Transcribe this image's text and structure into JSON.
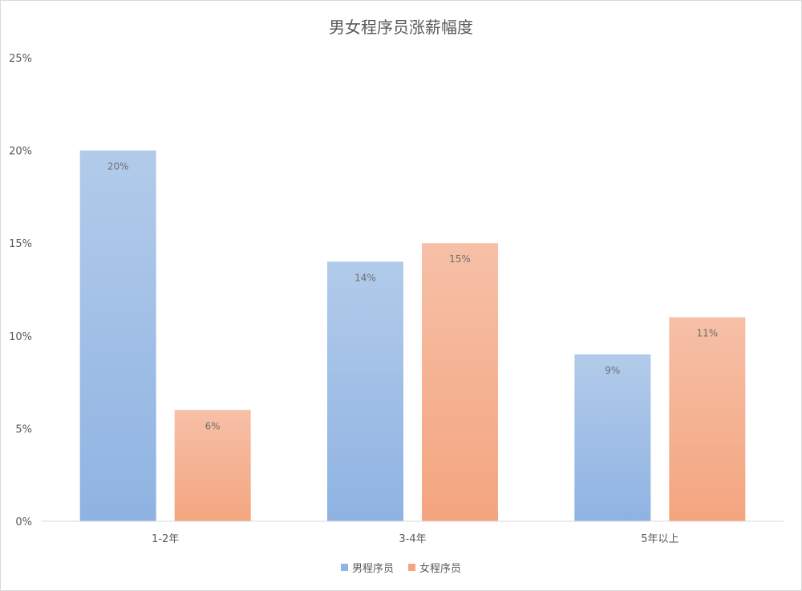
{
  "chart_data": {
    "type": "bar",
    "title": "男女程序员涨薪幅度",
    "categories": [
      "1-2年",
      "3-4年",
      "5年以上"
    ],
    "series": [
      {
        "name": "男程序员",
        "values": [
          20,
          14,
          9
        ],
        "labels": [
          "20%",
          "14%",
          "9%"
        ],
        "color_top": "#b2cbea",
        "color_bottom": "#8fb3e2"
      },
      {
        "name": "女程序员",
        "values": [
          6,
          15,
          11
        ],
        "labels": [
          "6%",
          "15%",
          "11%"
        ],
        "color_top": "#f6c0a7",
        "color_bottom": "#f4a57f"
      }
    ],
    "ylim": [
      0,
      25
    ],
    "yticks": [
      0,
      5,
      10,
      15,
      20,
      25
    ],
    "ytick_labels": [
      "0%",
      "5%",
      "10%",
      "15%",
      "20%",
      "25%"
    ],
    "grid": false,
    "legend": "bottom"
  }
}
